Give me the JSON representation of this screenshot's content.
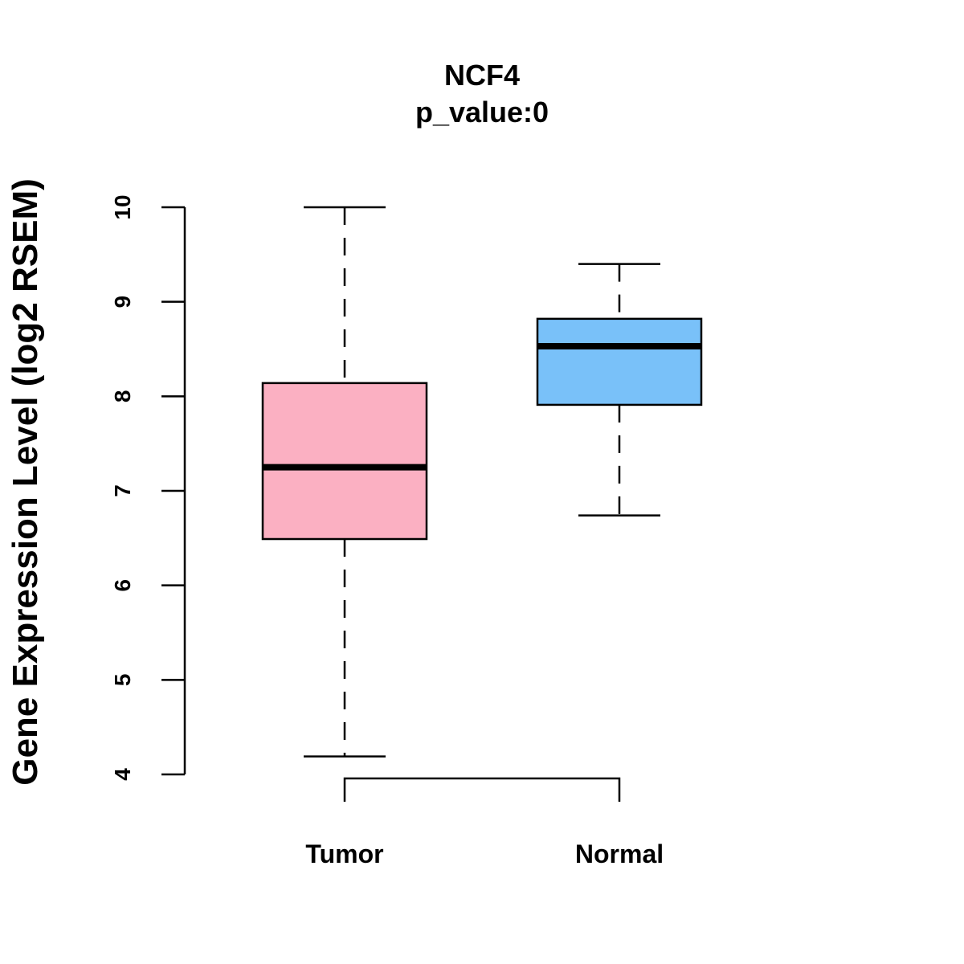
{
  "chart_data": {
    "type": "boxplot",
    "title": "NCF4",
    "subtitle": "p_value:0",
    "xlabel": "",
    "ylabel": "Gene Expression Level (log2 RSEM)",
    "ylim": [
      4,
      10
    ],
    "yticks": [
      4,
      5,
      6,
      7,
      8,
      9,
      10
    ],
    "categories": [
      "Tumor",
      "Normal"
    ],
    "boxes": [
      {
        "name": "Tumor",
        "whisker_low": 4.19,
        "q1": 6.49,
        "median": 7.25,
        "q3": 8.14,
        "whisker_high": 10.0,
        "color": "#FBB0C2"
      },
      {
        "name": "Normal",
        "whisker_low": 6.74,
        "q1": 7.91,
        "median": 8.53,
        "q3": 8.82,
        "whisker_high": 9.4,
        "color": "#79C1F9"
      }
    ],
    "comparison_bracket": {
      "from": "Tumor",
      "to": "Normal"
    }
  }
}
